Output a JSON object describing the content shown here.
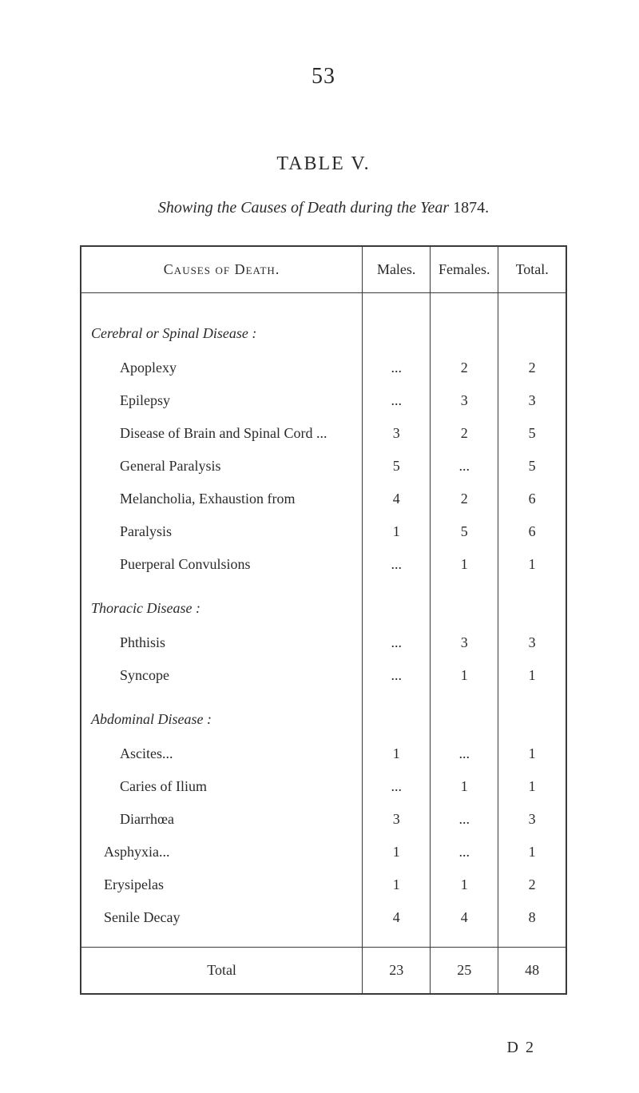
{
  "page_number": "53",
  "table_label": "TABLE V.",
  "subtitle_prefix": "Showing the Causes of Death during the Year",
  "subtitle_year": "1874.",
  "headers": {
    "causes": "Causes of Death.",
    "males": "Males.",
    "females": "Females.",
    "total": "Total."
  },
  "sections": [
    {
      "title": "Cerebral or Spinal Disease :",
      "rows": [
        {
          "label": "Apoplexy",
          "males": "...",
          "females": "2",
          "total": "2"
        },
        {
          "label": "Epilepsy",
          "males": "...",
          "females": "3",
          "total": "3"
        },
        {
          "label": "Disease of Brain and Spinal Cord ...",
          "males": "3",
          "females": "2",
          "total": "5"
        },
        {
          "label": "General Paralysis",
          "males": "5",
          "females": "...",
          "total": "5"
        },
        {
          "label": "Melancholia, Exhaustion from",
          "males": "4",
          "females": "2",
          "total": "6"
        },
        {
          "label": "Paralysis",
          "males": "1",
          "females": "5",
          "total": "6"
        },
        {
          "label": "Puerperal Convulsions",
          "males": "...",
          "females": "1",
          "total": "1"
        }
      ]
    },
    {
      "title": "Thoracic Disease :",
      "rows": [
        {
          "label": "Phthisis",
          "males": "...",
          "females": "3",
          "total": "3"
        },
        {
          "label": "Syncope",
          "males": "...",
          "females": "1",
          "total": "1"
        }
      ]
    },
    {
      "title": "Abdominal Disease :",
      "rows": [
        {
          "label": "Ascites...",
          "males": "1",
          "females": "...",
          "total": "1"
        },
        {
          "label": "Caries of Ilium",
          "males": "...",
          "females": "1",
          "total": "1"
        },
        {
          "label": "Diarrhœa",
          "males": "3",
          "females": "...",
          "total": "3"
        }
      ]
    }
  ],
  "loose_rows": [
    {
      "label": "Asphyxia...",
      "males": "1",
      "females": "...",
      "total": "1"
    },
    {
      "label": "Erysipelas",
      "males": "1",
      "females": "1",
      "total": "2"
    },
    {
      "label": "Senile Decay",
      "males": "4",
      "females": "4",
      "total": "8"
    }
  ],
  "total_row": {
    "label": "Total",
    "males": "23",
    "females": "25",
    "total": "48"
  },
  "footer": "D 2",
  "colors": {
    "text": "#2a2a2a",
    "border": "#3a3a3a",
    "background": "#ffffff"
  },
  "typography": {
    "page_number_fontsize": 28,
    "table_label_fontsize": 24,
    "subtitle_fontsize": 20,
    "body_fontsize": 18,
    "footer_fontsize": 20
  }
}
